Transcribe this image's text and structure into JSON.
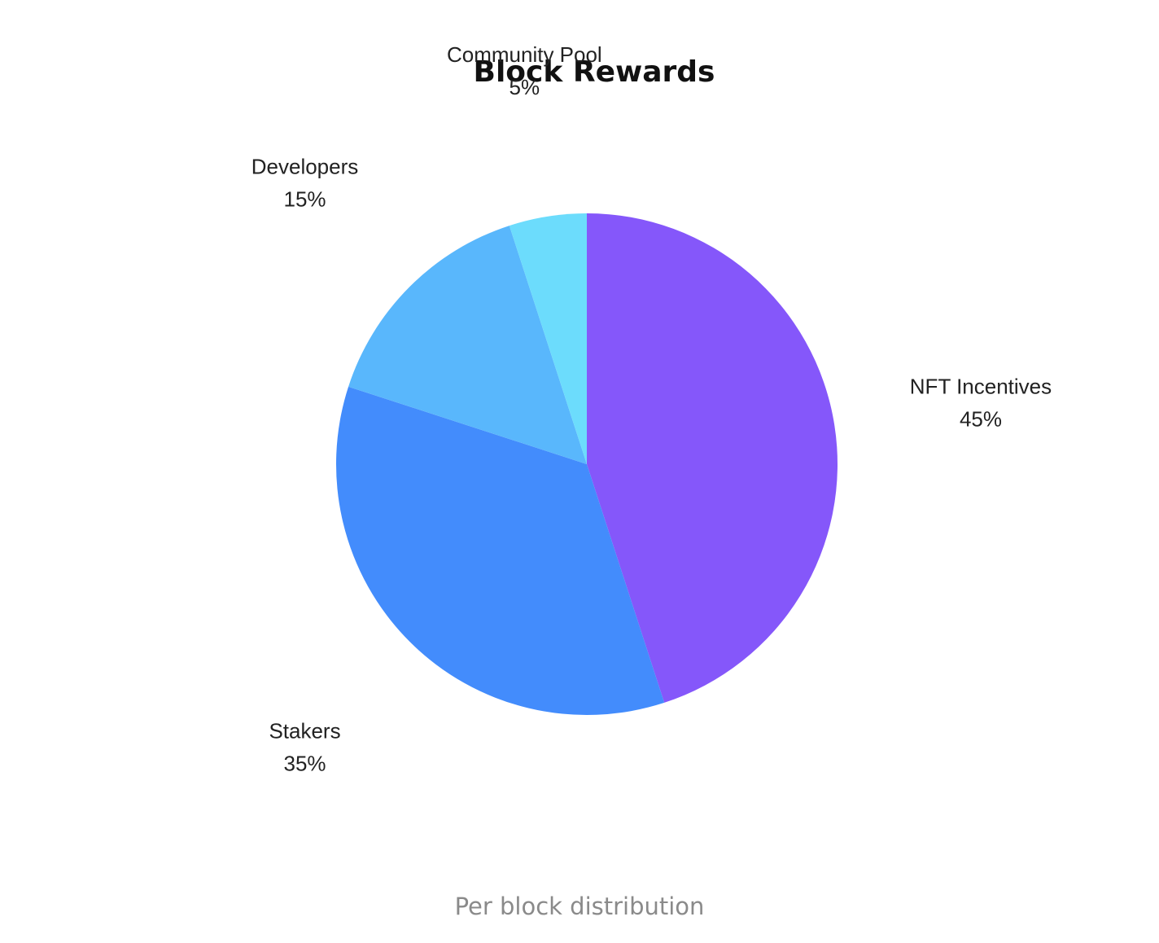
{
  "chart_data": {
    "type": "pie",
    "title": "Block Rewards",
    "start_angle_deg": 0,
    "direction": "clockwise",
    "slices": [
      {
        "label": "NFT Incentives",
        "value": 45,
        "value_label": "45%",
        "color": "#8557fa"
      },
      {
        "label": "Stakers",
        "value": 35,
        "value_label": "35%",
        "color": "#438cfc"
      },
      {
        "label": "Developers",
        "value": 15,
        "value_label": "15%",
        "color": "#59b7fc"
      },
      {
        "label": "Community Pool",
        "value": 5,
        "value_label": "5%",
        "color": "#6cdcfc"
      }
    ]
  },
  "caption": "Per block distribution"
}
